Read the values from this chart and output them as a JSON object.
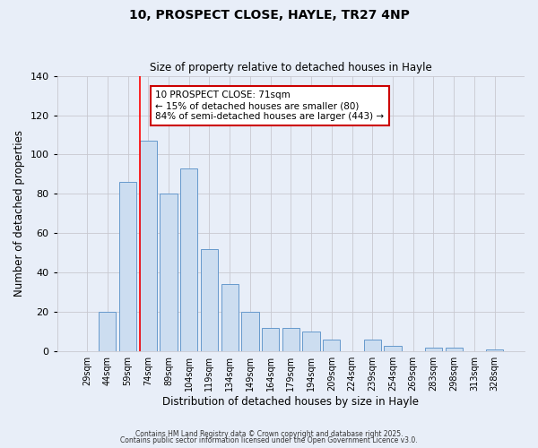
{
  "title": "10, PROSPECT CLOSE, HAYLE, TR27 4NP",
  "subtitle": "Size of property relative to detached houses in Hayle",
  "xlabel": "Distribution of detached houses by size in Hayle",
  "ylabel": "Number of detached properties",
  "bar_labels": [
    "29sqm",
    "44sqm",
    "59sqm",
    "74sqm",
    "89sqm",
    "104sqm",
    "119sqm",
    "134sqm",
    "149sqm",
    "164sqm",
    "179sqm",
    "194sqm",
    "209sqm",
    "224sqm",
    "239sqm",
    "254sqm",
    "269sqm",
    "283sqm",
    "298sqm",
    "313sqm",
    "328sqm"
  ],
  "bar_values": [
    0,
    20,
    86,
    107,
    80,
    93,
    52,
    34,
    20,
    12,
    12,
    10,
    6,
    0,
    6,
    3,
    0,
    2,
    2,
    0,
    1
  ],
  "bar_color": "#ccddf0",
  "bar_edge_color": "#6699cc",
  "ylim": [
    0,
    140
  ],
  "yticks": [
    0,
    20,
    40,
    60,
    80,
    100,
    120,
    140
  ],
  "red_line_index": 3,
  "annotation_lines": [
    "10 PROSPECT CLOSE: 71sqm",
    "← 15% of detached houses are smaller (80)",
    "84% of semi-detached houses are larger (443) →"
  ],
  "footer_line1": "Contains HM Land Registry data © Crown copyright and database right 2025.",
  "footer_line2": "Contains public sector information licensed under the Open Government Licence v3.0.",
  "background_color": "#e8eef8",
  "grid_color": "#c8c8d0"
}
